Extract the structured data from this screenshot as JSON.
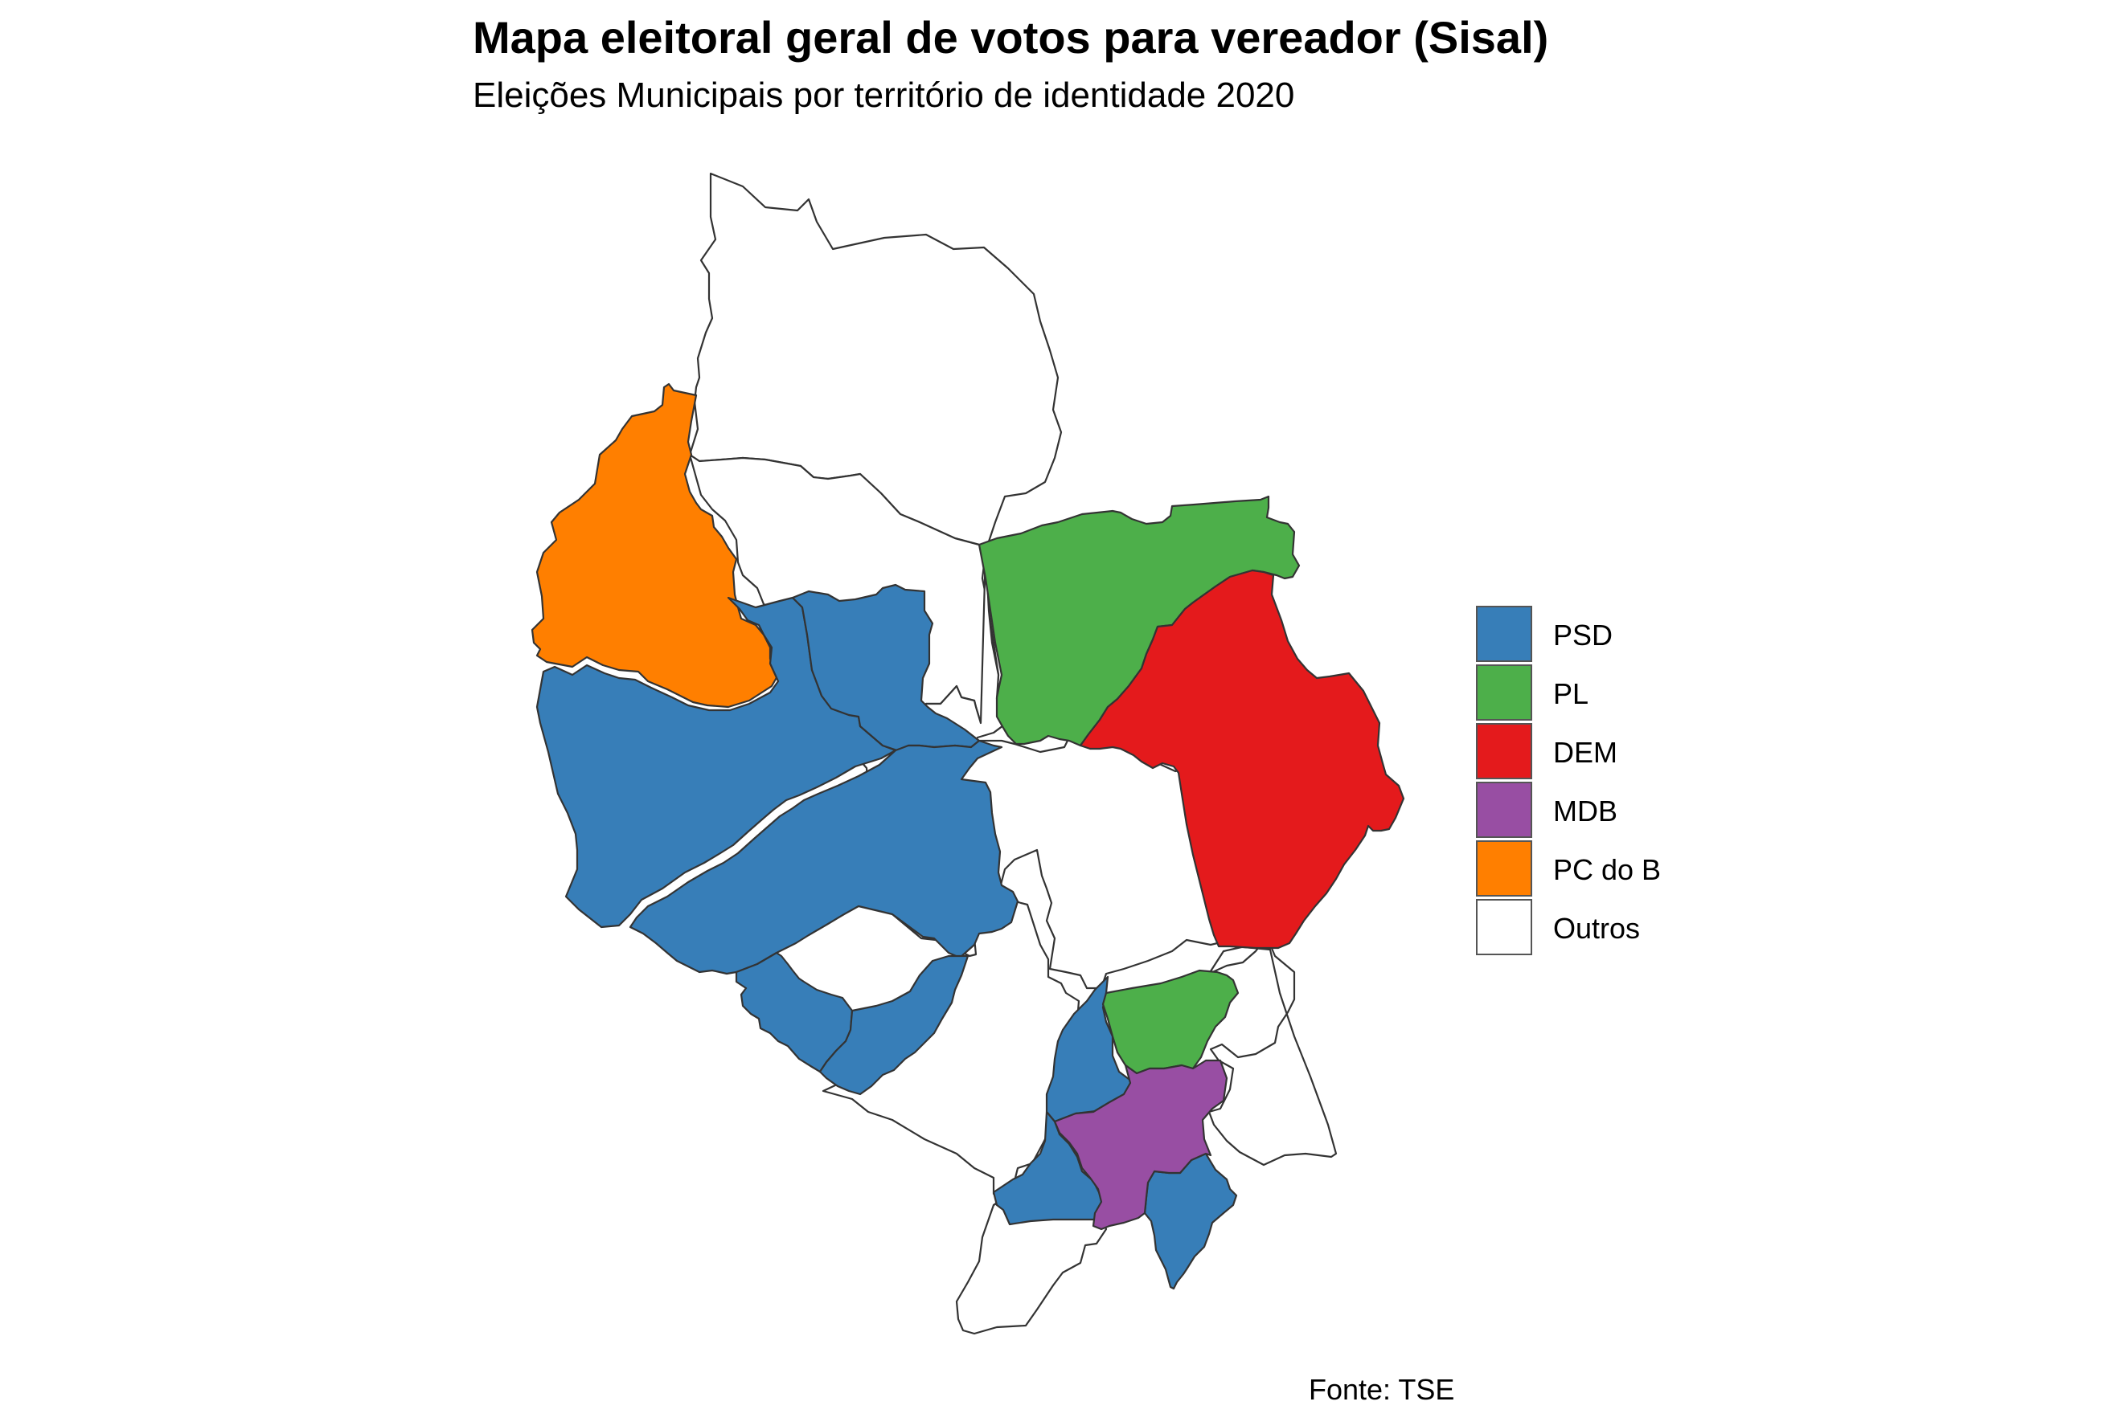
{
  "chart_data": {
    "type": "choropleth",
    "title": "Mapa eleitoral geral de votos para vereador (Sisal)",
    "subtitle": "Eleições Municipais por território de identidade 2020",
    "caption": "Fonte: TSE",
    "legend_position": "right",
    "legend": [
      {
        "label": "PSD",
        "color": "#377EB8"
      },
      {
        "label": "PL",
        "color": "#4DAF4A"
      },
      {
        "label": "DEM",
        "color": "#E41A1C"
      },
      {
        "label": "MDB",
        "color": "#984EA3"
      },
      {
        "label": "PC do B",
        "color": "#FF7F00"
      },
      {
        "label": "Outros",
        "color": "#FFFFFF"
      }
    ],
    "regions": [
      {
        "party": "Outros"
      },
      {
        "party": "Outros"
      },
      {
        "party": "Outros"
      },
      {
        "party": "Outros"
      },
      {
        "party": "Outros"
      },
      {
        "party": "Outros"
      },
      {
        "party": "Outros"
      },
      {
        "party": "PC do B"
      },
      {
        "party": "PSD"
      },
      {
        "party": "PSD"
      },
      {
        "party": "PSD"
      },
      {
        "party": "PSD"
      },
      {
        "party": "PSD"
      },
      {
        "party": "PSD"
      },
      {
        "party": "PSD"
      },
      {
        "party": "PSD"
      },
      {
        "party": "PL"
      },
      {
        "party": "PL"
      },
      {
        "party": "DEM"
      },
      {
        "party": "MDB"
      }
    ]
  }
}
